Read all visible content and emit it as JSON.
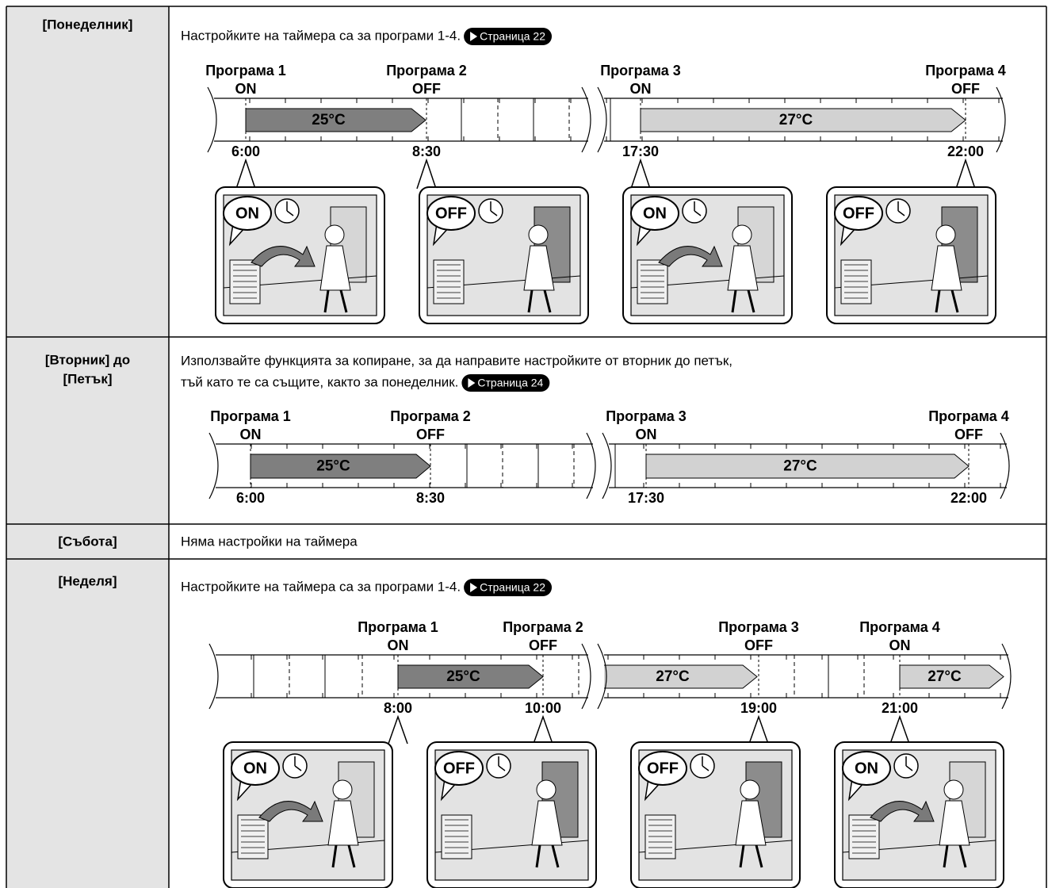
{
  "rows": [
    {
      "day": [
        "[Понеделник]"
      ],
      "text": [
        "Настройките на таймера са за програми 1-4."
      ],
      "link": "Страница 22",
      "timeline": {
        "programs": [
          {
            "name": "Програма 1",
            "state": "ON",
            "time": "6:00"
          },
          {
            "name": "Програма 2",
            "state": "OFF",
            "time": "8:30"
          },
          {
            "name": "Програма 3",
            "state": "ON",
            "time": "17:30"
          },
          {
            "name": "Програма 4",
            "state": "OFF",
            "time": "22:00"
          }
        ],
        "temps": [
          "25°C",
          "27°C"
        ]
      },
      "scenes": [
        "ON",
        "OFF",
        "ON",
        "OFF"
      ]
    },
    {
      "day": [
        "[Вторник] до",
        "[Петък]"
      ],
      "text": [
        "Използвайте функцията за копиране, за да направите настройките от вторник до петък,",
        "тъй като те са същите, както за понеделник."
      ],
      "link": "Страница 24",
      "timeline": {
        "programs": [
          {
            "name": "Програма 1",
            "state": "ON",
            "time": "6:00"
          },
          {
            "name": "Програма 2",
            "state": "OFF",
            "time": "8:30"
          },
          {
            "name": "Програма 3",
            "state": "ON",
            "time": "17:30"
          },
          {
            "name": "Програма 4",
            "state": "OFF",
            "time": "22:00"
          }
        ],
        "temps": [
          "25°C",
          "27°C"
        ]
      }
    },
    {
      "day": [
        "[Събота]"
      ],
      "text": [
        "Няма настройки на таймера"
      ]
    },
    {
      "day": [
        "[Неделя]"
      ],
      "text": [
        "Настройките на таймера са за програми 1-4."
      ],
      "link": "Страница 22",
      "timeline": {
        "programs": [
          {
            "name": "Програма 1",
            "state": "ON",
            "time": "8:00"
          },
          {
            "name": "Програма 2",
            "state": "OFF",
            "time": "10:00"
          },
          {
            "name": "Програма 3",
            "state": "OFF",
            "time": "19:00"
          },
          {
            "name": "Програма 4",
            "state": "ON",
            "time": "21:00"
          }
        ],
        "temps": [
          "25°C",
          "27°C",
          "27°C"
        ]
      },
      "scenes": [
        "ON",
        "OFF",
        "OFF",
        "ON"
      ]
    }
  ]
}
